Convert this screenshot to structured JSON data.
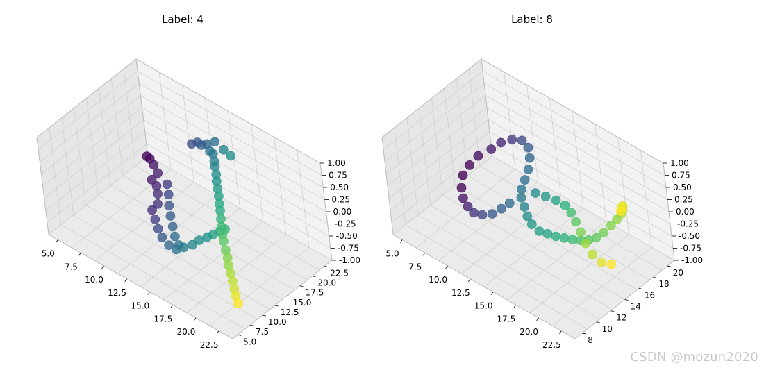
{
  "chart_data": [
    {
      "type": "scatter",
      "title": "Label: 4",
      "x_ticks": [
        "5.0",
        "7.5",
        "10.0",
        "12.5",
        "15.0",
        "17.5",
        "20.0",
        "22.5"
      ],
      "y_ticks": [
        "5.0",
        "7.5",
        "10.0",
        "12.5",
        "15.0",
        "17.5",
        "20.0",
        "22.5"
      ],
      "z_ticks": [
        "-1.00",
        "-0.75",
        "-0.50",
        "-0.25",
        "0.00",
        "0.25",
        "0.50",
        "0.75",
        "1.00"
      ],
      "xlim": [
        4,
        24
      ],
      "ylim": [
        4,
        24
      ],
      "zlim": [
        -1,
        1
      ],
      "colormap": "viridis",
      "marker_size": "large",
      "grid": true,
      "series": [
        {
          "points": [
            [
              11.5,
              20.5,
              0.34
            ],
            [
              12.0,
              20.8,
              0.4
            ],
            [
              12.3,
              21.0,
              0.36
            ],
            [
              12.8,
              21.2,
              0.42
            ],
            [
              13.2,
              21.0,
              0.33
            ],
            [
              13.8,
              20.6,
              0.37
            ],
            [
              14.2,
              20.0,
              0.31
            ],
            [
              14.6,
              19.4,
              0.29
            ],
            [
              15.0,
              18.8,
              0.22
            ],
            [
              15.4,
              18.1,
              0.18
            ],
            [
              15.8,
              17.5,
              0.12
            ],
            [
              16.2,
              16.9,
              0.06
            ],
            [
              16.6,
              16.2,
              0.0
            ],
            [
              17.0,
              15.6,
              -0.05
            ],
            [
              17.4,
              14.9,
              -0.12
            ],
            [
              17.8,
              14.2,
              -0.18
            ],
            [
              18.2,
              13.6,
              -0.25
            ],
            [
              18.6,
              13.0,
              -0.3
            ],
            [
              19.1,
              12.4,
              -0.38
            ],
            [
              19.6,
              11.8,
              -0.44
            ],
            [
              20.0,
              11.2,
              -0.5
            ],
            [
              20.5,
              10.6,
              -0.56
            ],
            [
              21.0,
              10.0,
              -0.62
            ],
            [
              21.4,
              9.5,
              -0.7
            ],
            [
              21.8,
              9.0,
              -0.76
            ],
            [
              22.3,
              8.5,
              -0.82
            ],
            [
              14.5,
              21.5,
              0.46
            ],
            [
              15.2,
              21.6,
              0.4
            ],
            [
              13.4,
              21.8,
              0.48
            ],
            [
              8.0,
              17.5,
              -0.05
            ],
            [
              8.5,
              17.2,
              -0.02
            ],
            [
              9.0,
              17.0,
              -0.08
            ],
            [
              9.6,
              16.6,
              -0.15
            ],
            [
              9.2,
              16.0,
              -0.28
            ],
            [
              9.8,
              15.8,
              -0.33
            ],
            [
              10.2,
              15.2,
              -0.4
            ],
            [
              10.5,
              14.5,
              -0.52
            ],
            [
              10.2,
              13.8,
              -0.62
            ],
            [
              10.8,
              13.2,
              -0.7
            ],
            [
              11.4,
              12.6,
              -0.78
            ],
            [
              12.0,
              12.2,
              -0.86
            ],
            [
              12.8,
              12.0,
              -0.92
            ],
            [
              13.5,
              12.2,
              -0.95
            ],
            [
              14.0,
              12.8,
              -0.9
            ],
            [
              14.6,
              13.5,
              -0.84
            ],
            [
              15.0,
              14.2,
              -0.76
            ],
            [
              15.6,
              14.8,
              -0.68
            ],
            [
              16.2,
              15.0,
              -0.58
            ],
            [
              16.8,
              15.4,
              -0.48
            ],
            [
              17.3,
              15.6,
              -0.4
            ],
            [
              10.8,
              16.2,
              -0.22
            ],
            [
              11.2,
              15.6,
              -0.34
            ],
            [
              11.6,
              14.8,
              -0.46
            ],
            [
              12.0,
              14.2,
              -0.58
            ],
            [
              12.5,
              13.6,
              -0.7
            ],
            [
              13.0,
              13.0,
              -0.8
            ],
            [
              13.6,
              12.6,
              -0.88
            ]
          ]
        }
      ]
    },
    {
      "type": "scatter",
      "title": "Label: 8",
      "x_ticks": [
        "5.0",
        "7.5",
        "10.0",
        "12.5",
        "15.0",
        "17.5",
        "20.0",
        "22.5"
      ],
      "y_ticks": [
        "8",
        "10",
        "12",
        "14",
        "16",
        "18",
        "20"
      ],
      "z_ticks": [
        "-1.00",
        "-0.75",
        "-0.50",
        "-0.25",
        "0.00",
        "0.25",
        "0.50",
        "0.75",
        "1.00"
      ],
      "xlim": [
        4,
        24
      ],
      "ylim": [
        7,
        21
      ],
      "zlim": [
        -1,
        1
      ],
      "colormap": "viridis",
      "marker_size": "large",
      "grid": true,
      "series": [
        {
          "points": [
            [
              8.5,
              16.0,
              0.2
            ],
            [
              9.0,
              16.8,
              0.3
            ],
            [
              9.8,
              17.4,
              0.38
            ],
            [
              10.6,
              17.8,
              0.4
            ],
            [
              11.4,
              17.6,
              0.36
            ],
            [
              12.0,
              17.0,
              0.28
            ],
            [
              12.4,
              16.2,
              0.18
            ],
            [
              12.6,
              15.4,
              0.08
            ],
            [
              12.8,
              14.6,
              0.0
            ],
            [
              13.2,
              14.0,
              -0.06
            ],
            [
              13.8,
              13.6,
              -0.14
            ],
            [
              14.4,
              13.2,
              -0.22
            ],
            [
              15.0,
              13.0,
              -0.3
            ],
            [
              15.6,
              13.2,
              -0.4
            ],
            [
              16.0,
              13.8,
              -0.48
            ],
            [
              16.4,
              14.4,
              -0.56
            ],
            [
              16.8,
              15.0,
              -0.62
            ],
            [
              17.2,
              15.6,
              -0.68
            ],
            [
              17.6,
              16.2,
              -0.72
            ],
            [
              18.0,
              16.8,
              -0.74
            ],
            [
              18.4,
              17.4,
              -0.72
            ],
            [
              18.8,
              18.0,
              -0.64
            ],
            [
              19.2,
              18.6,
              -0.52
            ],
            [
              19.6,
              19.0,
              -0.4
            ],
            [
              20.0,
              19.2,
              -0.26
            ],
            [
              20.4,
              19.0,
              -0.12
            ],
            [
              20.8,
              18.6,
              0.02
            ],
            [
              21.2,
              18.2,
              0.14
            ],
            [
              21.6,
              17.6,
              0.22
            ],
            [
              22.0,
              17.0,
              0.26
            ],
            [
              7.6,
              15.2,
              0.06
            ],
            [
              7.2,
              14.4,
              -0.08
            ],
            [
              7.0,
              13.6,
              -0.22
            ],
            [
              7.4,
              12.8,
              -0.34
            ],
            [
              8.0,
              12.2,
              -0.42
            ],
            [
              8.8,
              11.8,
              -0.46
            ],
            [
              9.6,
              11.6,
              -0.48
            ],
            [
              10.4,
              11.8,
              -0.46
            ],
            [
              11.2,
              12.2,
              -0.4
            ],
            [
              11.8,
              12.8,
              -0.3
            ],
            [
              12.3,
              13.4,
              -0.2
            ],
            [
              14.2,
              14.8,
              0.05
            ],
            [
              15.0,
              15.2,
              0.02
            ],
            [
              15.8,
              15.6,
              -0.02
            ],
            [
              16.6,
              15.8,
              -0.06
            ],
            [
              17.4,
              15.6,
              -0.1
            ],
            [
              18.2,
              15.2,
              -0.16
            ],
            [
              19.0,
              14.8,
              -0.24
            ],
            [
              19.8,
              14.4,
              -0.34
            ],
            [
              20.6,
              14.2,
              -0.46
            ],
            [
              21.4,
              14.4,
              -0.56
            ],
            [
              22.0,
              15.0,
              -0.6
            ]
          ]
        }
      ]
    }
  ],
  "watermark": "CSDN @mozun2020",
  "colors": {
    "pane": "#f2f2f2",
    "pane_side": "#e6e6e6",
    "pane_floor": "#ebebeb",
    "grid": "#d0d0d0",
    "axis": "#000000"
  }
}
